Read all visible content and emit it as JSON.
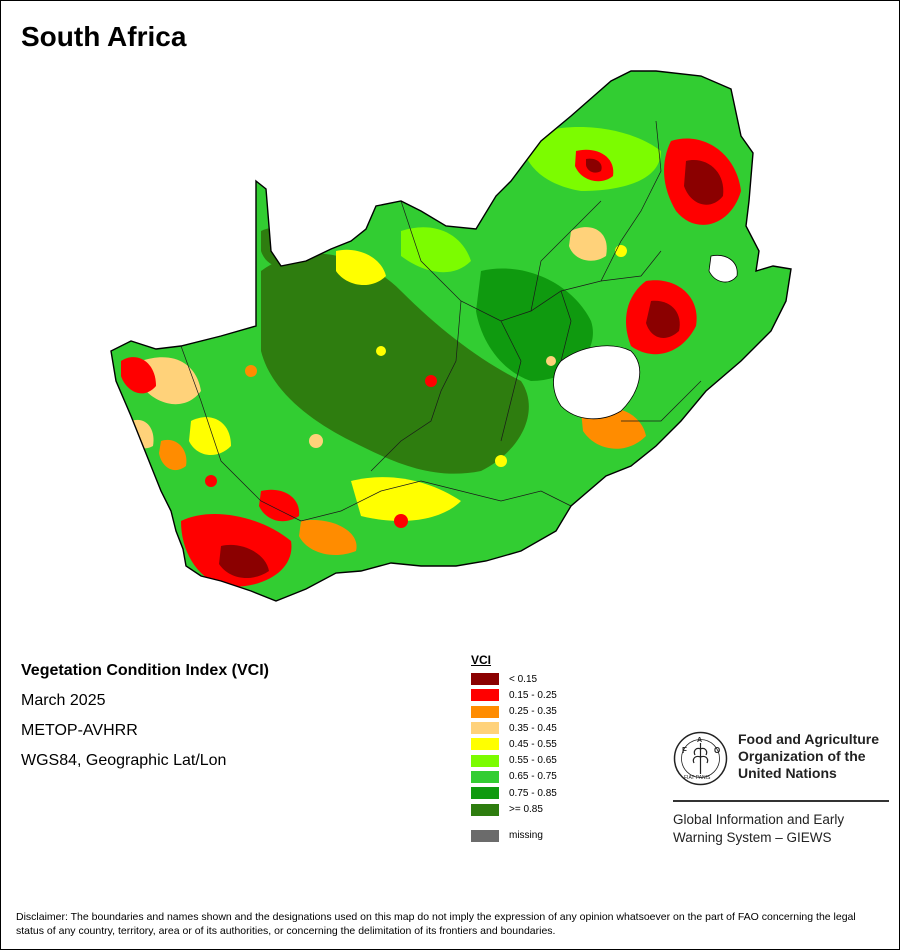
{
  "map": {
    "title": "South Africa",
    "product": "Vegetation Condition Index (VCI)",
    "period": "March 2025",
    "sensor": "METOP-AVHRR",
    "projection": "WGS84, Geographic Lat/Lon"
  },
  "legend": {
    "title": "VCI",
    "classes": [
      {
        "label": "< 0.15",
        "color": "#8b0000"
      },
      {
        "label": "0.15 - 0.25",
        "color": "#ff0000"
      },
      {
        "label": "0.25 - 0.35",
        "color": "#ff8c00"
      },
      {
        "label": "0.35 - 0.45",
        "color": "#ffd27a"
      },
      {
        "label": "0.45 - 0.55",
        "color": "#ffff00"
      },
      {
        "label": "0.55 - 0.65",
        "color": "#7cfc00"
      },
      {
        "label": "0.65 - 0.75",
        "color": "#32cd32"
      },
      {
        "label": "0.75 - 0.85",
        "color": "#0f9a0f"
      },
      {
        "label": ">= 0.85",
        "color": "#2e7d0f"
      }
    ],
    "missing": {
      "label": "missing",
      "color": "#6b6b6b"
    }
  },
  "logo": {
    "org_line1": "Food and Agriculture",
    "org_line2": "Organization of the",
    "org_line3": "United Nations",
    "emblem_letters": "FAO",
    "emblem_motto": "FIAT PANIS",
    "giews_line1": "Global Information and Early",
    "giews_line2": "Warning System – GIEWS"
  },
  "disclaimer": "Disclaimer: The boundaries and names shown and the designations used on this map do not imply the expression of any opinion whatsoever on the part of FAO concerning the legal status of any country, territory, area or of its authorities, or concerning the delimitation of its frontiers and boundaries."
}
